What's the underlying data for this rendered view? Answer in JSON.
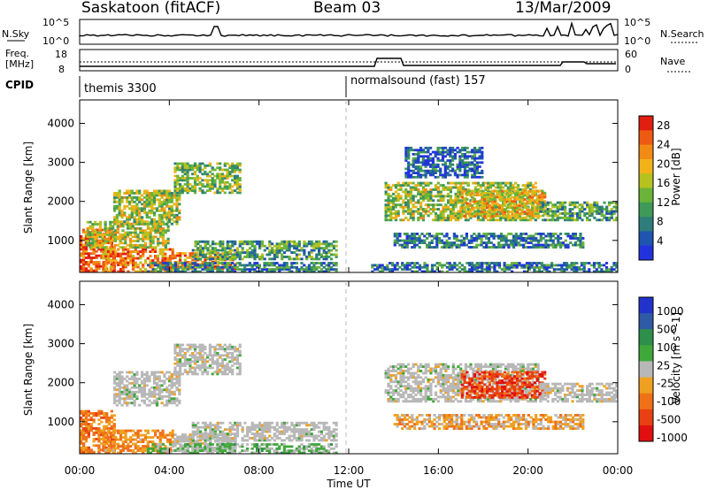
{
  "header": {
    "station": "Saskatoon (fitACF)",
    "beam": "Beam 03",
    "date": "13/Mar/2009"
  },
  "top_panels": {
    "nsky_label": "N.Sky",
    "nsky_ticks": [
      "10^5",
      "10^0"
    ],
    "nsearch_label": "N.Search",
    "nsearch_ticks": [
      "10^5",
      "10^0"
    ],
    "freq_label_1": "Freq.",
    "freq_label_2": "[MHz]",
    "freq_ticks": [
      "18",
      "8"
    ],
    "nave_label": "Nave",
    "nave_ticks": [
      "60",
      "0"
    ],
    "cpid_label": "CPID",
    "cpid_segments": [
      {
        "name": "themis 3300",
        "start_hour": 0
      },
      {
        "name": "normalsound (fast) 157",
        "start_hour": 12
      }
    ]
  },
  "chart_data": [
    {
      "type": "heatmap",
      "panel": "power",
      "xlabel": "",
      "ylabel": "Slant Range [km]",
      "x_ticks": [
        "00:00",
        "04:00",
        "08:00",
        "12:00",
        "16:00",
        "20:00",
        "00:00"
      ],
      "xlim_hours": [
        0,
        24
      ],
      "y_ticks": [
        1000,
        2000,
        3000,
        4000
      ],
      "ylim": [
        180,
        4600
      ],
      "colorbar_label": "Power [dB]",
      "colorbar_ticks": [
        4,
        8,
        12,
        16,
        20,
        24,
        28
      ],
      "colorbar_range": [
        0,
        30
      ],
      "colors": [
        "#2233dd",
        "#1f55b0",
        "#2e7d7a",
        "#3f9a58",
        "#6ab43a",
        "#b7c21f",
        "#f2b21a",
        "#f28a16",
        "#ef5a12",
        "#e01f10"
      ],
      "regions": [
        {
          "t": [
            0.0,
            1.6
          ],
          "r": [
            200,
            1300
          ],
          "v": 0.9
        },
        {
          "t": [
            1.0,
            4.2
          ],
          "r": [
            180,
            800
          ],
          "v": 0.8
        },
        {
          "t": [
            4.2,
            7.0
          ],
          "r": [
            250,
            700
          ],
          "v": 0.75
        },
        {
          "t": [
            0.3,
            4.0
          ],
          "r": [
            800,
            1500
          ],
          "v": 0.55
        },
        {
          "t": [
            1.5,
            4.5
          ],
          "r": [
            1400,
            2300
          ],
          "v": 0.5
        },
        {
          "t": [
            4.2,
            7.2
          ],
          "r": [
            2200,
            3000
          ],
          "v": 0.45
        },
        {
          "t": [
            5.0,
            11.5
          ],
          "r": [
            500,
            1000
          ],
          "v": 0.35
        },
        {
          "t": [
            3.0,
            11.5
          ],
          "r": [
            180,
            450
          ],
          "v": 0.25
        },
        {
          "t": [
            13.6,
            20.5
          ],
          "r": [
            1500,
            2500
          ],
          "v": 0.5
        },
        {
          "t": [
            17.0,
            20.8
          ],
          "r": [
            1600,
            2300
          ],
          "v": 0.65
        },
        {
          "t": [
            14.0,
            22.5
          ],
          "r": [
            800,
            1200
          ],
          "v": 0.2
        },
        {
          "t": [
            13.0,
            24.0
          ],
          "r": [
            180,
            450
          ],
          "v": 0.2
        },
        {
          "t": [
            20.5,
            24.0
          ],
          "r": [
            1500,
            2000
          ],
          "v": 0.35
        },
        {
          "t": [
            14.5,
            18.0
          ],
          "r": [
            2600,
            3400
          ],
          "v": 0.15
        }
      ]
    },
    {
      "type": "heatmap",
      "panel": "velocity",
      "xlabel": "Time UT",
      "ylabel": "Slant Range [km]",
      "x_ticks": [
        "00:00",
        "04:00",
        "08:00",
        "12:00",
        "16:00",
        "20:00",
        "00:00"
      ],
      "xlim_hours": [
        0,
        24
      ],
      "y_ticks": [
        1000,
        2000,
        3000,
        4000
      ],
      "ylim": [
        180,
        4600
      ],
      "colorbar_label": "Velocity [m s^-1]",
      "colorbar_ticks": [
        "1000",
        "500",
        "100",
        "25",
        "-25",
        "-100",
        "-500",
        "-1000"
      ],
      "colorbar_range": [
        -1200,
        1200
      ],
      "colors": [
        "#2233cc",
        "#2f5aa5",
        "#2d8f4a",
        "#3fa83a",
        "#b8b8b8",
        "#f0a020",
        "#f07018",
        "#e84012",
        "#e01010"
      ],
      "regions": [
        {
          "t": [
            0.0,
            1.6
          ],
          "r": [
            200,
            1300
          ],
          "v": -0.45
        },
        {
          "t": [
            1.0,
            4.2
          ],
          "r": [
            180,
            800
          ],
          "v": -0.35
        },
        {
          "t": [
            4.2,
            7.0
          ],
          "r": [
            250,
            700
          ],
          "v": 0.0
        },
        {
          "t": [
            1.5,
            4.5
          ],
          "r": [
            1400,
            2300
          ],
          "v": 0.0
        },
        {
          "t": [
            4.2,
            7.2
          ],
          "r": [
            2200,
            3000
          ],
          "v": 0.0
        },
        {
          "t": [
            5.0,
            11.5
          ],
          "r": [
            500,
            1000
          ],
          "v": 0.0
        },
        {
          "t": [
            3.0,
            11.5
          ],
          "r": [
            180,
            450
          ],
          "v": 0.15
        },
        {
          "t": [
            13.6,
            20.5
          ],
          "r": [
            1500,
            2500
          ],
          "v": 0.0
        },
        {
          "t": [
            17.0,
            20.8
          ],
          "r": [
            1600,
            2300
          ],
          "v": -0.75
        },
        {
          "t": [
            14.0,
            22.5
          ],
          "r": [
            800,
            1200
          ],
          "v": -0.25
        },
        {
          "t": [
            20.5,
            24.0
          ],
          "r": [
            1500,
            2000
          ],
          "v": 0.0
        }
      ]
    }
  ]
}
